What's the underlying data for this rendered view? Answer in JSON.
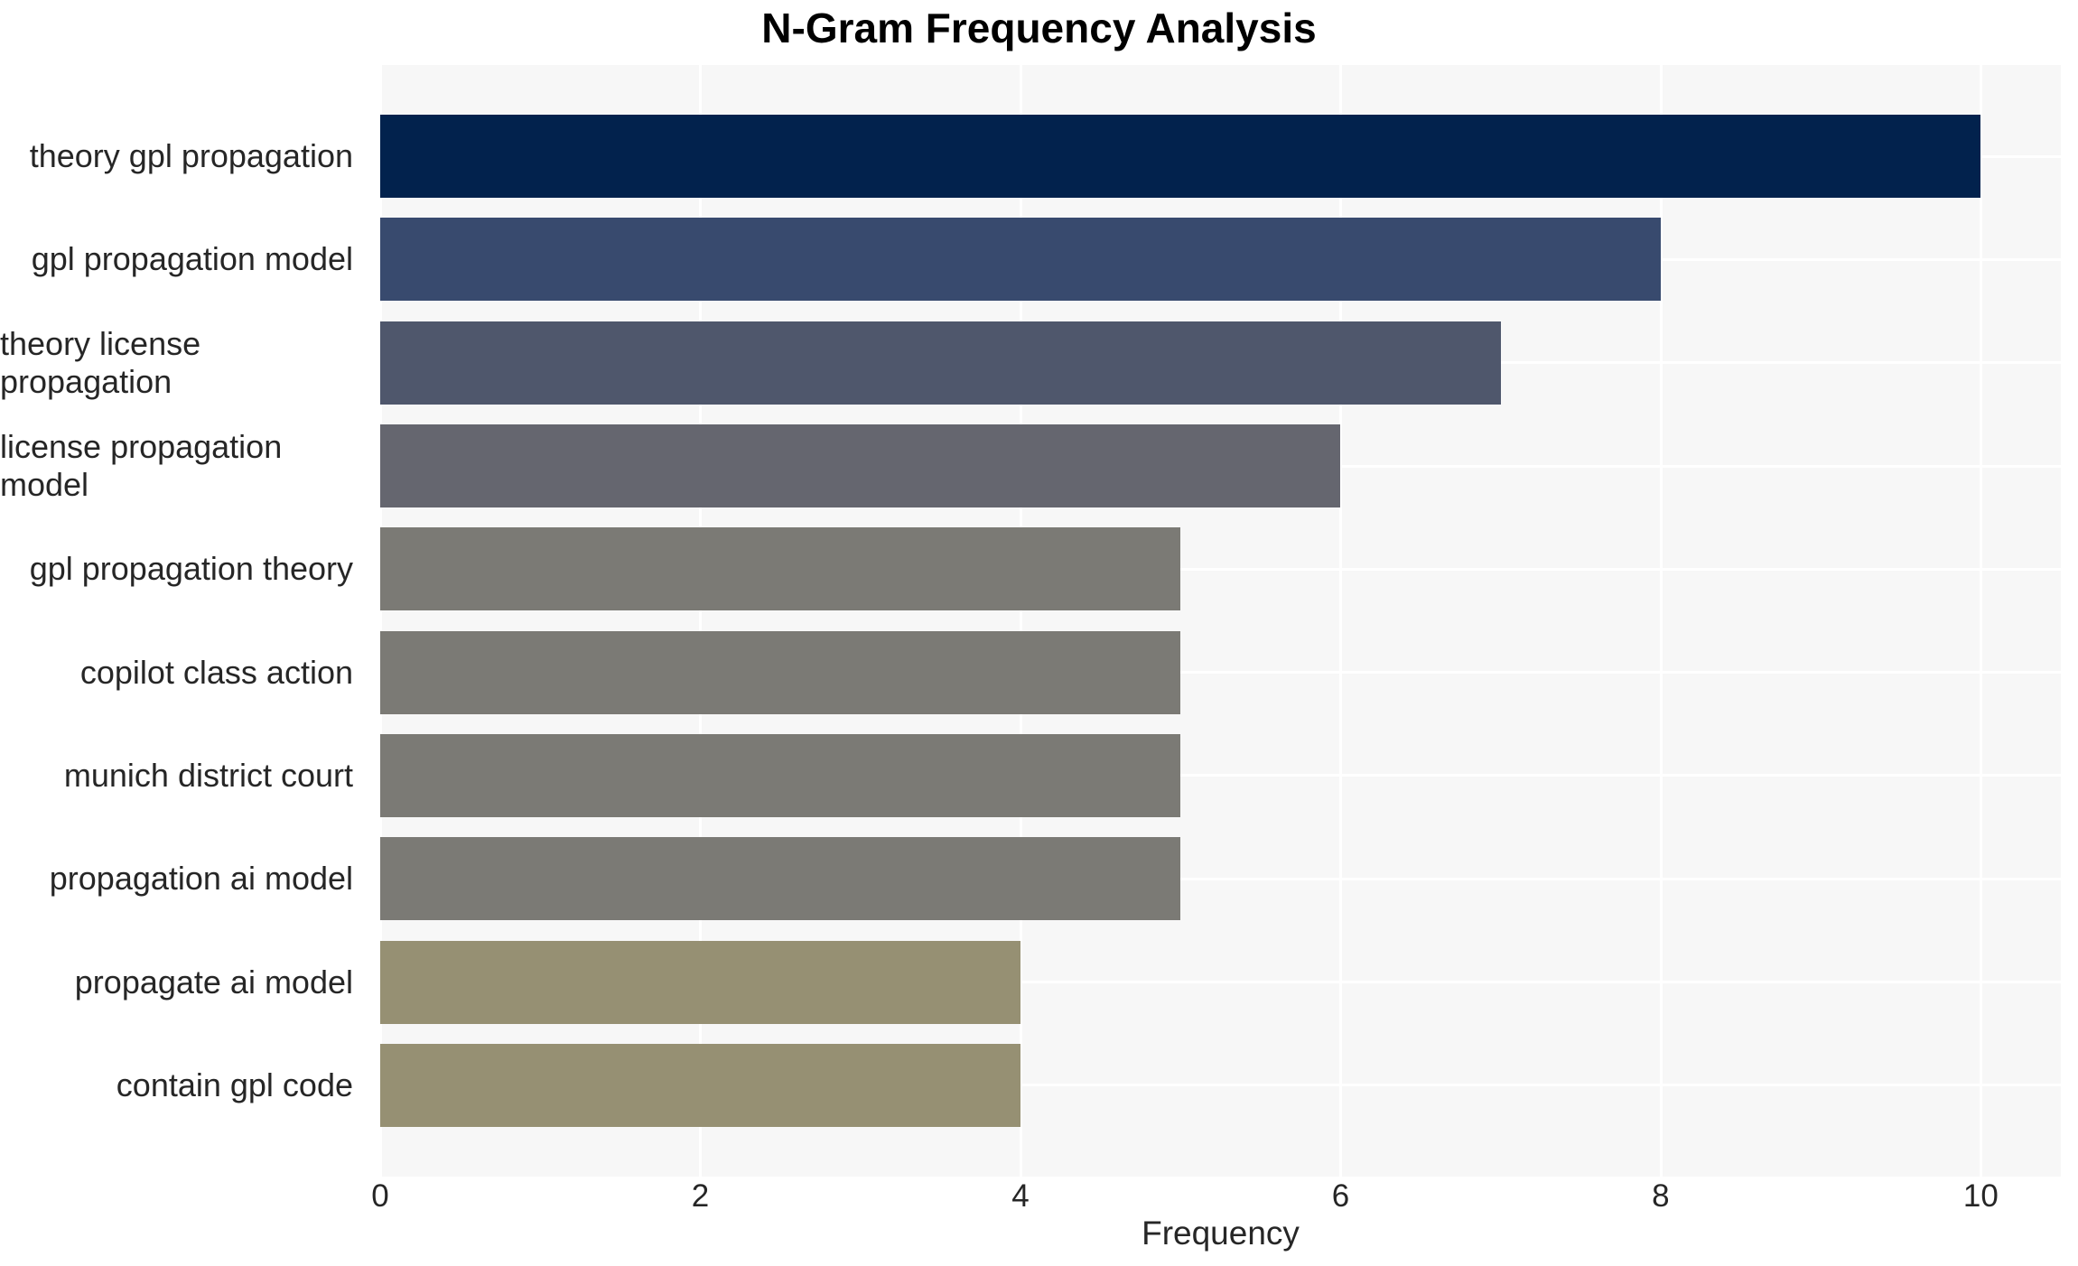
{
  "chart_data": {
    "type": "bar",
    "orientation": "horizontal",
    "title": "N-Gram Frequency Analysis",
    "xlabel": "Frequency",
    "ylabel": "",
    "categories": [
      "theory gpl propagation",
      "gpl propagation model",
      "theory license propagation",
      "license propagation model",
      "gpl propagation theory",
      "copilot class action",
      "munich district court",
      "propagation ai model",
      "propagate ai model",
      "contain gpl code"
    ],
    "values": [
      10,
      8,
      7,
      6,
      5,
      5,
      5,
      5,
      4,
      4
    ],
    "bar_colors": [
      "#02224d",
      "#384a6e",
      "#4f576c",
      "#65666f",
      "#7b7a75",
      "#7b7a75",
      "#7b7a75",
      "#7b7a75",
      "#969073",
      "#969073"
    ],
    "xlim": [
      0,
      10.5
    ],
    "xticks": [
      0,
      2,
      4,
      6,
      8,
      10
    ],
    "grid": true,
    "legend": "none",
    "colors": {
      "plot_background": "#f7f7f7",
      "grid_color": "#ffffff",
      "tick_text_color": "#262626",
      "title_color": "#000000"
    }
  }
}
